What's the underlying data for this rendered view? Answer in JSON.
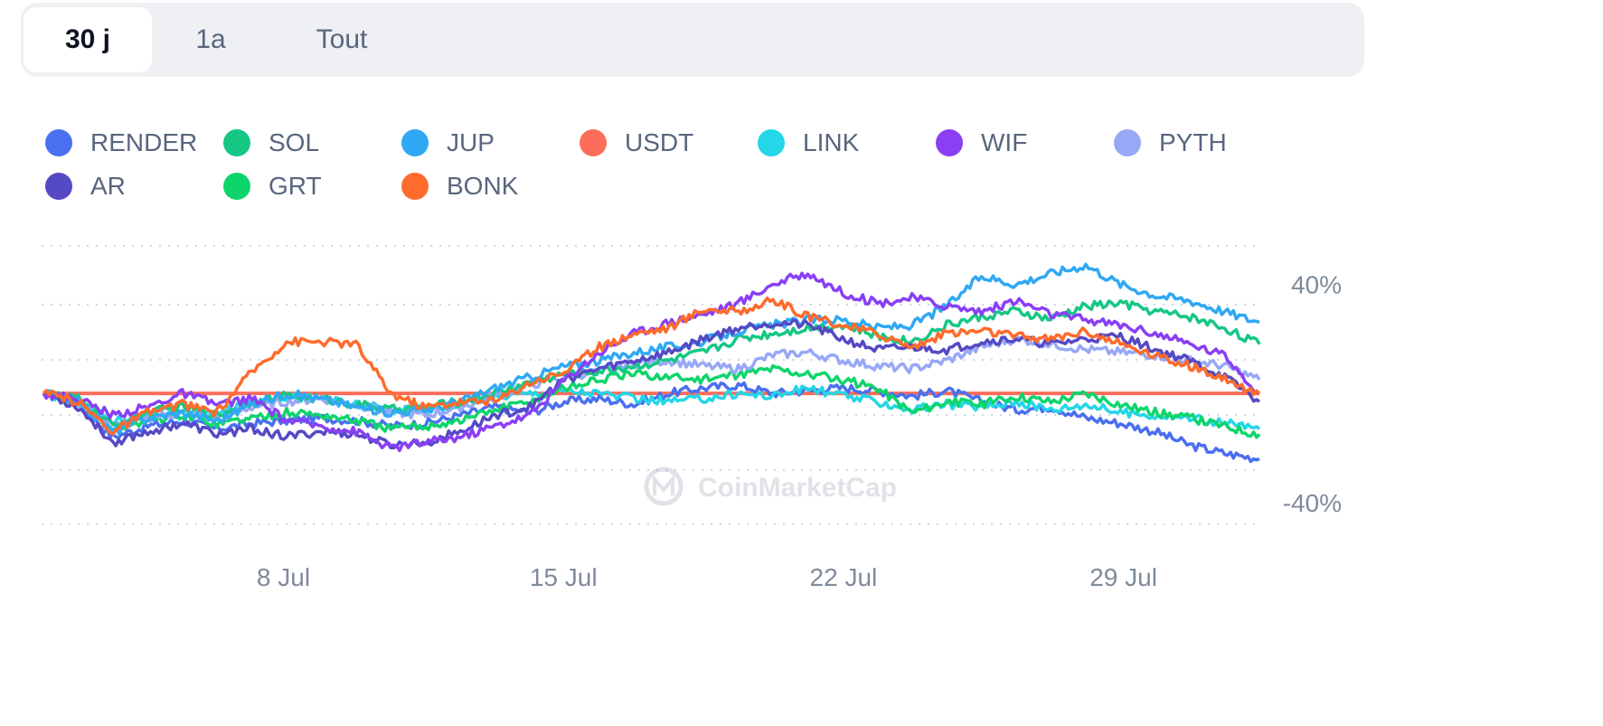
{
  "tabs": [
    {
      "label": "30 j",
      "active": true
    },
    {
      "label": "1a",
      "active": false
    },
    {
      "label": "Tout",
      "active": false
    }
  ],
  "watermark": "CoinMarketCap",
  "chart_data": {
    "type": "line",
    "x_ticks": [
      "8 Jul",
      "15 Jul",
      "22 Jul",
      "29 Jul"
    ],
    "y_ticks": [
      "40%",
      "-40%"
    ],
    "ylim": [
      -48,
      54
    ],
    "x_range": [
      "2 Jul",
      "2 Aug"
    ],
    "grid": "dotted horizontal",
    "legend_position": "top",
    "series": [
      {
        "name": "RENDER",
        "color": "#4a6ff0",
        "values": [
          0,
          -4,
          -16,
          -12,
          -10,
          -13,
          -11,
          -10,
          -9,
          -10,
          -12,
          -11,
          -8,
          -5,
          -7,
          -3,
          -2,
          -4,
          0,
          2,
          3,
          0,
          1,
          2,
          1,
          -1,
          1,
          -3,
          -6,
          -5,
          -9,
          -11,
          -14,
          -19,
          -22,
          -24
        ]
      },
      {
        "name": "SOL",
        "color": "#16c784",
        "values": [
          0,
          -2,
          -12,
          -7,
          -5,
          -8,
          -3,
          -1,
          -2,
          -4,
          -6,
          -5,
          -3,
          0,
          4,
          7,
          8,
          10,
          12,
          15,
          20,
          22,
          24,
          25,
          21,
          19,
          25,
          28,
          30,
          27,
          32,
          33,
          30,
          28,
          24,
          18
        ]
      },
      {
        "name": "JUP",
        "color": "#2fa8f5",
        "values": [
          0,
          -3,
          -14,
          -9,
          -7,
          -10,
          -4,
          0,
          -2,
          -5,
          -7,
          -6,
          -3,
          2,
          6,
          10,
          12,
          15,
          17,
          19,
          23,
          25,
          27,
          27,
          24,
          25,
          32,
          43,
          40,
          44,
          47,
          40,
          36,
          34,
          30,
          26
        ]
      },
      {
        "name": "USDT",
        "color": "#fc6e5a",
        "values": [
          0,
          0,
          0,
          0,
          0,
          0,
          0,
          0,
          0,
          0,
          0,
          0,
          0,
          0,
          0,
          0,
          0,
          0,
          0,
          0,
          0,
          0,
          0,
          0,
          0,
          0,
          0,
          0,
          0,
          0,
          0,
          0,
          0,
          0,
          0,
          0
        ]
      },
      {
        "name": "LINK",
        "color": "#23d6e8",
        "values": [
          0,
          -3,
          -10,
          -7,
          -6,
          -8,
          -3,
          -1,
          -2,
          -4,
          -6,
          -6,
          -4,
          -1,
          0,
          1,
          0,
          -2,
          -3,
          -2,
          0,
          -1,
          2,
          -1,
          -3,
          -6,
          -4,
          -5,
          -3,
          -6,
          -4,
          -7,
          -8,
          -9,
          -11,
          -13
        ]
      },
      {
        "name": "WIF",
        "color": "#8a3ff5",
        "values": [
          0,
          -2,
          -8,
          -5,
          0,
          -4,
          -2,
          -10,
          -12,
          -14,
          -20,
          -18,
          -16,
          -12,
          -8,
          5,
          15,
          22,
          26,
          29,
          33,
          40,
          44,
          37,
          33,
          35,
          32,
          30,
          34,
          29,
          27,
          25,
          22,
          18,
          14,
          0
        ]
      },
      {
        "name": "PYTH",
        "color": "#97a8f7",
        "values": [
          0,
          -3,
          -12,
          -9,
          -7,
          -9,
          -5,
          -3,
          -2,
          -4,
          -7,
          -8,
          -5,
          -1,
          3,
          6,
          8,
          11,
          12,
          10,
          9,
          14,
          15,
          12,
          10,
          9,
          12,
          17,
          20,
          18,
          16,
          15,
          14,
          12,
          10,
          5
        ]
      },
      {
        "name": "AR",
        "color": "#5549c5",
        "values": [
          0,
          -5,
          -18,
          -14,
          -11,
          -15,
          -13,
          -16,
          -14,
          -15,
          -19,
          -18,
          -14,
          -8,
          -5,
          5,
          9,
          12,
          15,
          20,
          24,
          26,
          25,
          20,
          16,
          17,
          16,
          19,
          20,
          18,
          20,
          21,
          16,
          12,
          6,
          -3
        ]
      },
      {
        "name": "GRT",
        "color": "#0ed56b",
        "values": [
          0,
          -3,
          -13,
          -10,
          -8,
          -11,
          -9,
          -7,
          -8,
          -10,
          -13,
          -12,
          -10,
          -6,
          -3,
          2,
          5,
          7,
          6,
          5,
          7,
          9,
          7,
          5,
          2,
          -7,
          -3,
          -4,
          -1,
          -3,
          0,
          -4,
          -7,
          -9,
          -12,
          -15
        ]
      },
      {
        "name": "BONK",
        "color": "#ff6b2c",
        "values": [
          0,
          -3,
          -14,
          -7,
          -4,
          -7,
          8,
          19,
          19,
          18,
          0,
          -5,
          -3,
          -3,
          4,
          8,
          17,
          22,
          24,
          31,
          30,
          34,
          28,
          25,
          22,
          17,
          22,
          23,
          21,
          20,
          23,
          18,
          14,
          10,
          5,
          0
        ]
      }
    ]
  }
}
